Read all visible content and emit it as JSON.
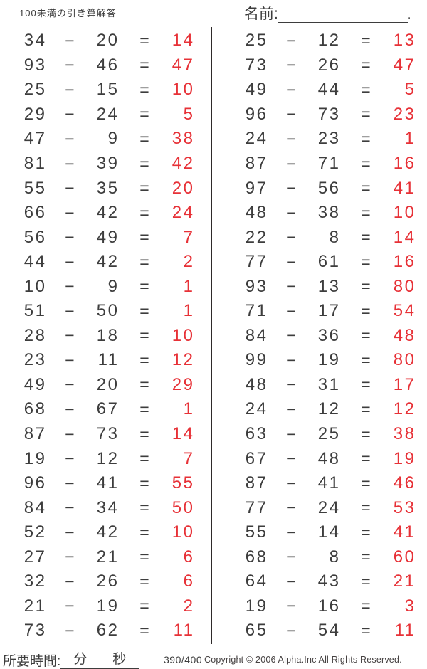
{
  "header": {
    "title": "100未満の引き算解答",
    "name_label": "名前:",
    "name_line_period": "."
  },
  "operators": {
    "minus": "−",
    "equals": "="
  },
  "problems": {
    "left": [
      {
        "a": "34",
        "b": "20",
        "ans": "14"
      },
      {
        "a": "93",
        "b": "46",
        "ans": "47"
      },
      {
        "a": "25",
        "b": "15",
        "ans": "10"
      },
      {
        "a": "29",
        "b": "24",
        "ans": "5"
      },
      {
        "a": "47",
        "b": "9",
        "ans": "38"
      },
      {
        "a": "81",
        "b": "39",
        "ans": "42"
      },
      {
        "a": "55",
        "b": "35",
        "ans": "20"
      },
      {
        "a": "66",
        "b": "42",
        "ans": "24"
      },
      {
        "a": "56",
        "b": "49",
        "ans": "7"
      },
      {
        "a": "44",
        "b": "42",
        "ans": "2"
      },
      {
        "a": "10",
        "b": "9",
        "ans": "1"
      },
      {
        "a": "51",
        "b": "50",
        "ans": "1"
      },
      {
        "a": "28",
        "b": "18",
        "ans": "10"
      },
      {
        "a": "23",
        "b": "11",
        "ans": "12"
      },
      {
        "a": "49",
        "b": "20",
        "ans": "29"
      },
      {
        "a": "68",
        "b": "67",
        "ans": "1"
      },
      {
        "a": "87",
        "b": "73",
        "ans": "14"
      },
      {
        "a": "19",
        "b": "12",
        "ans": "7"
      },
      {
        "a": "96",
        "b": "41",
        "ans": "55"
      },
      {
        "a": "84",
        "b": "34",
        "ans": "50"
      },
      {
        "a": "52",
        "b": "42",
        "ans": "10"
      },
      {
        "a": "27",
        "b": "21",
        "ans": "6"
      },
      {
        "a": "32",
        "b": "26",
        "ans": "6"
      },
      {
        "a": "21",
        "b": "19",
        "ans": "2"
      },
      {
        "a": "73",
        "b": "62",
        "ans": "11"
      }
    ],
    "right": [
      {
        "a": "25",
        "b": "12",
        "ans": "13"
      },
      {
        "a": "73",
        "b": "26",
        "ans": "47"
      },
      {
        "a": "49",
        "b": "44",
        "ans": "5"
      },
      {
        "a": "96",
        "b": "73",
        "ans": "23"
      },
      {
        "a": "24",
        "b": "23",
        "ans": "1"
      },
      {
        "a": "87",
        "b": "71",
        "ans": "16"
      },
      {
        "a": "97",
        "b": "56",
        "ans": "41"
      },
      {
        "a": "48",
        "b": "38",
        "ans": "10"
      },
      {
        "a": "22",
        "b": "8",
        "ans": "14"
      },
      {
        "a": "77",
        "b": "61",
        "ans": "16"
      },
      {
        "a": "93",
        "b": "13",
        "ans": "80"
      },
      {
        "a": "71",
        "b": "17",
        "ans": "54"
      },
      {
        "a": "84",
        "b": "36",
        "ans": "48"
      },
      {
        "a": "99",
        "b": "19",
        "ans": "80"
      },
      {
        "a": "48",
        "b": "31",
        "ans": "17"
      },
      {
        "a": "24",
        "b": "12",
        "ans": "12"
      },
      {
        "a": "63",
        "b": "25",
        "ans": "38"
      },
      {
        "a": "67",
        "b": "48",
        "ans": "19"
      },
      {
        "a": "87",
        "b": "41",
        "ans": "46"
      },
      {
        "a": "77",
        "b": "24",
        "ans": "53"
      },
      {
        "a": "55",
        "b": "14",
        "ans": "41"
      },
      {
        "a": "68",
        "b": "8",
        "ans": "60"
      },
      {
        "a": "64",
        "b": "43",
        "ans": "21"
      },
      {
        "a": "19",
        "b": "16",
        "ans": "3"
      },
      {
        "a": "65",
        "b": "54",
        "ans": "11"
      }
    ]
  },
  "footer": {
    "time_label": "所要時間:",
    "minutes_label": "分",
    "seconds_label": "秒",
    "score": "390/400",
    "copyright": "Copyright © 2006 Alpha.Inc All Rights Reserved."
  },
  "colors": {
    "ink": "#3d3d3d",
    "answer_red": "#e73137"
  }
}
